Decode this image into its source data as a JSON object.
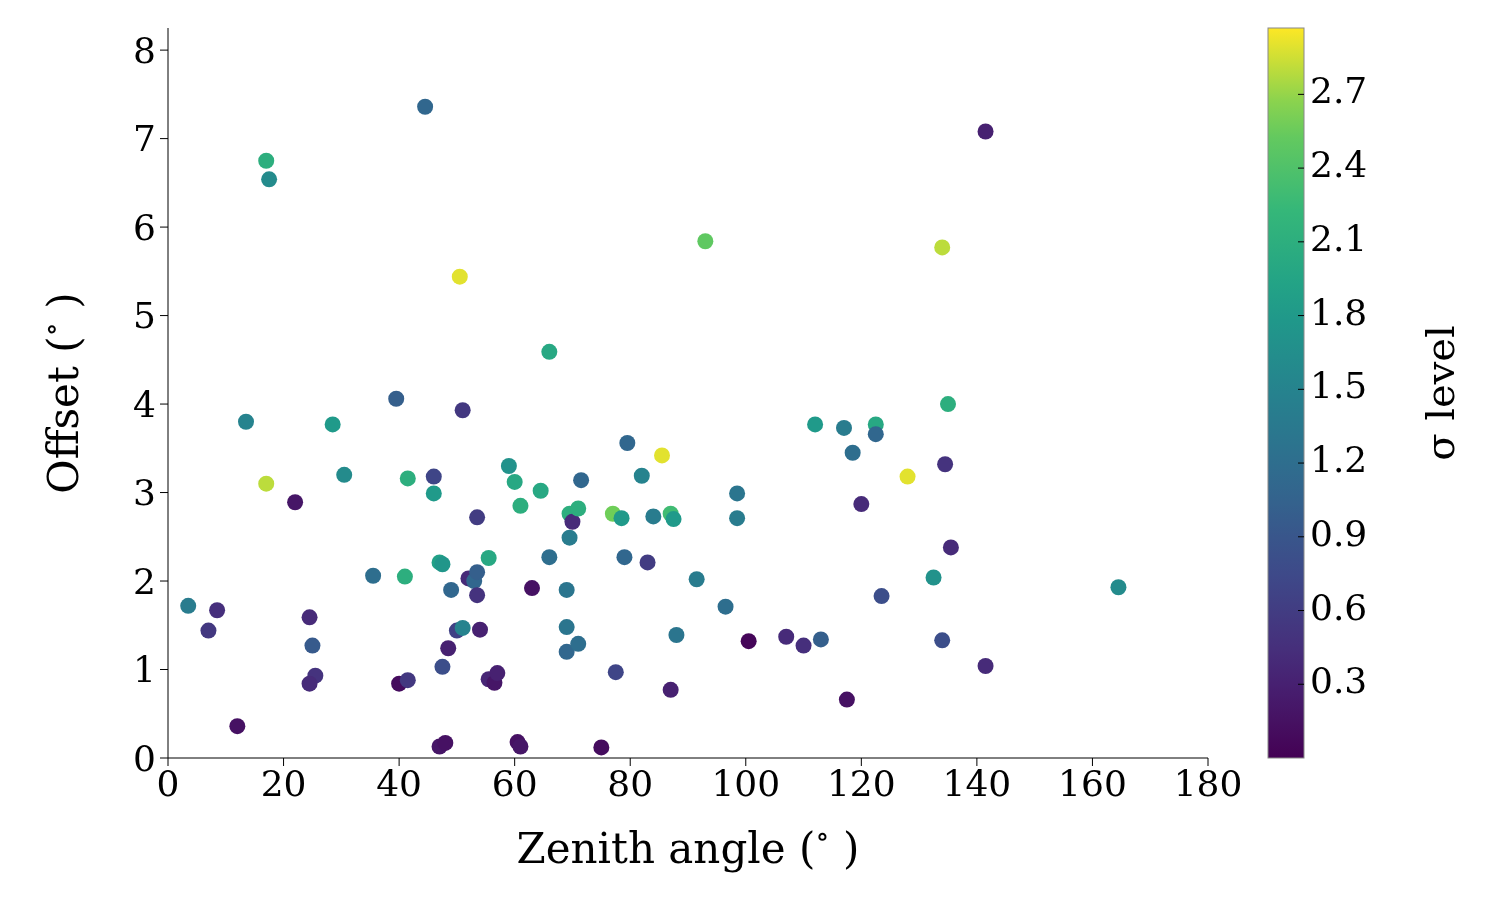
{
  "chart_data": {
    "type": "scatter",
    "xlabel": "Zenith angle ($^{∘}$)",
    "ylabel": "Offset ($^{∘}$)",
    "clabel": "σ level",
    "xlim": [
      0,
      180
    ],
    "xticks": [
      0,
      20,
      40,
      60,
      80,
      100,
      120,
      140,
      160,
      180
    ],
    "ylim": [
      0,
      8.25
    ],
    "yticks": [
      0,
      1,
      2,
      3,
      4,
      5,
      6,
      7,
      8
    ],
    "clim": [
      0,
      2.97
    ],
    "cticks": [
      0.3,
      0.6,
      0.9,
      1.2,
      1.5,
      1.8,
      2.1,
      2.4,
      2.7
    ],
    "grid": false,
    "legend": false,
    "marker": "circle",
    "x": [
      3.5,
      7,
      8.5,
      13.5,
      12,
      17,
      17.5,
      17,
      22,
      24.5,
      25,
      25.5,
      24.5,
      28.5,
      30.5,
      35.5,
      39.5,
      40,
      41,
      41.5,
      41.5,
      44.5,
      46,
      46,
      47,
      47.5,
      47.5,
      47,
      48,
      48.5,
      49,
      50.5,
      51,
      50,
      51,
      52,
      53,
      53.5,
      53.5,
      53.5,
      54,
      55.5,
      55.5,
      56.5,
      57,
      59,
      60,
      61,
      60.5,
      61,
      63,
      64.5,
      66,
      66,
      69,
      69,
      69,
      69.5,
      69.5,
      70,
      71,
      71.5,
      71,
      75,
      77,
      77.5,
      78.5,
      79,
      79.5,
      82,
      83,
      84,
      85.5,
      87,
      87,
      87.5,
      88,
      91.5,
      93,
      96.5,
      98.5,
      98.5,
      100.5,
      107,
      110,
      113,
      112,
      117,
      118.5,
      117.5,
      120,
      122.5,
      122.5,
      123.5,
      128,
      132.5,
      134,
      134.5,
      134,
      135,
      135.5,
      141.5,
      141.5,
      164.5
    ],
    "values": [
      1.72,
      1.44,
      1.67,
      3.8,
      0.36,
      6.75,
      6.54,
      3.1,
      2.89,
      1.59,
      1.27,
      0.93,
      0.84,
      3.77,
      3.2,
      2.06,
      4.06,
      0.84,
      2.05,
      3.16,
      0.88,
      7.36,
      3.18,
      2.99,
      2.21,
      2.19,
      1.03,
      0.13,
      0.17,
      1.24,
      1.9,
      5.44,
      3.93,
      1.44,
      1.47,
      2.03,
      2.0,
      2.1,
      2.72,
      1.84,
      1.45,
      2.26,
      0.89,
      0.85,
      0.96,
      3.3,
      3.12,
      2.85,
      0.18,
      0.13,
      1.92,
      3.02,
      4.59,
      2.27,
      1.9,
      1.48,
      1.2,
      2.49,
      2.76,
      2.67,
      2.82,
      3.14,
      1.29,
      0.12,
      2.76,
      0.97,
      2.71,
      2.27,
      3.56,
      3.19,
      2.21,
      2.73,
      3.42,
      2.76,
      0.77,
      2.7,
      1.39,
      2.02,
      5.84,
      1.71,
      2.99,
      2.71,
      1.32,
      1.37,
      1.27,
      1.34,
      3.77,
      3.73,
      3.45,
      0.66,
      2.87,
      3.77,
      3.66,
      1.83,
      3.18,
      2.04,
      5.77,
      3.32,
      1.33,
      4.0,
      2.38,
      7.08,
      1.04,
      1.93
    ],
    "cvalues": [
      1.4,
      0.55,
      0.45,
      1.5,
      0.15,
      2.1,
      1.6,
      2.8,
      0.2,
      0.4,
      0.95,
      0.5,
      0.4,
      1.8,
      1.6,
      1.2,
      1.0,
      0.1,
      2.1,
      2.1,
      0.55,
      1.1,
      0.7,
      1.8,
      1.9,
      1.75,
      0.8,
      0.2,
      0.15,
      0.3,
      1.1,
      2.9,
      0.55,
      0.65,
      1.5,
      0.4,
      1.1,
      1.0,
      0.6,
      0.5,
      0.3,
      2.0,
      0.35,
      0.2,
      0.3,
      1.7,
      2.0,
      2.1,
      0.15,
      0.2,
      0.15,
      2.0,
      2.0,
      1.2,
      1.3,
      1.3,
      1.1,
      1.4,
      2.1,
      0.4,
      2.1,
      1.1,
      1.2,
      0.1,
      2.6,
      0.7,
      1.8,
      1.1,
      1.1,
      1.5,
      0.6,
      1.4,
      2.9,
      2.3,
      0.3,
      1.8,
      1.3,
      1.4,
      2.5,
      1.2,
      1.3,
      1.4,
      0.05,
      0.4,
      0.45,
      1.0,
      1.8,
      1.4,
      1.2,
      0.15,
      0.4,
      2.0,
      1.1,
      0.8,
      2.9,
      1.7,
      2.8,
      0.5,
      0.8,
      2.1,
      0.4,
      0.3,
      0.4,
      1.6
    ]
  }
}
